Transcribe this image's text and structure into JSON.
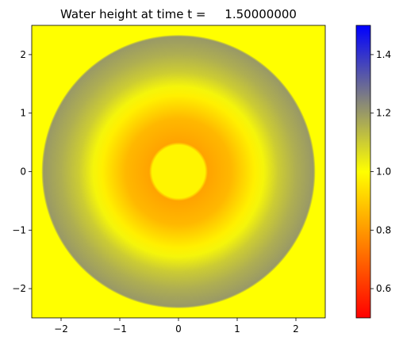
{
  "chart_data": {
    "type": "heatmap",
    "title": "Water height at time t =     1.50000000",
    "xlabel": "",
    "ylabel": "",
    "xlim": [
      -2.5,
      2.5
    ],
    "ylim": [
      -2.5,
      2.5
    ],
    "xticks": [
      -2,
      -1,
      0,
      1,
      2
    ],
    "yticks": [
      -2,
      -1,
      0,
      1,
      2
    ],
    "xtick_labels": [
      "−2",
      "−1",
      "0",
      "1",
      "2"
    ],
    "ytick_labels": [
      "−2",
      "−1",
      "0",
      "1",
      "2"
    ],
    "colorbar": {
      "vmin": 0.5,
      "vmax": 1.5,
      "ticks": [
        0.6,
        0.8,
        1.0,
        1.2,
        1.4
      ],
      "tick_labels": [
        "0.6",
        "0.8",
        "1.0",
        "1.2",
        "1.4"
      ],
      "colors": [
        {
          "value": 0.5,
          "color": "#ff0000"
        },
        {
          "value": 1.0,
          "color": "#ffff00"
        },
        {
          "value": 1.25,
          "color": "#808080"
        },
        {
          "value": 1.5,
          "color": "#0000ff"
        }
      ]
    },
    "radial_profile": [
      {
        "r": 0.0,
        "h": 0.98
      },
      {
        "r": 0.45,
        "h": 0.98
      },
      {
        "r": 0.5,
        "h": 0.82
      },
      {
        "r": 0.9,
        "h": 0.86
      },
      {
        "r": 1.3,
        "h": 0.97
      },
      {
        "r": 1.45,
        "h": 1.02
      },
      {
        "r": 1.7,
        "h": 1.1
      },
      {
        "r": 2.0,
        "h": 1.16
      },
      {
        "r": 2.3,
        "h": 1.2
      },
      {
        "r": 2.34,
        "h": 1.0
      },
      {
        "r": 3.6,
        "h": 1.0
      }
    ]
  }
}
